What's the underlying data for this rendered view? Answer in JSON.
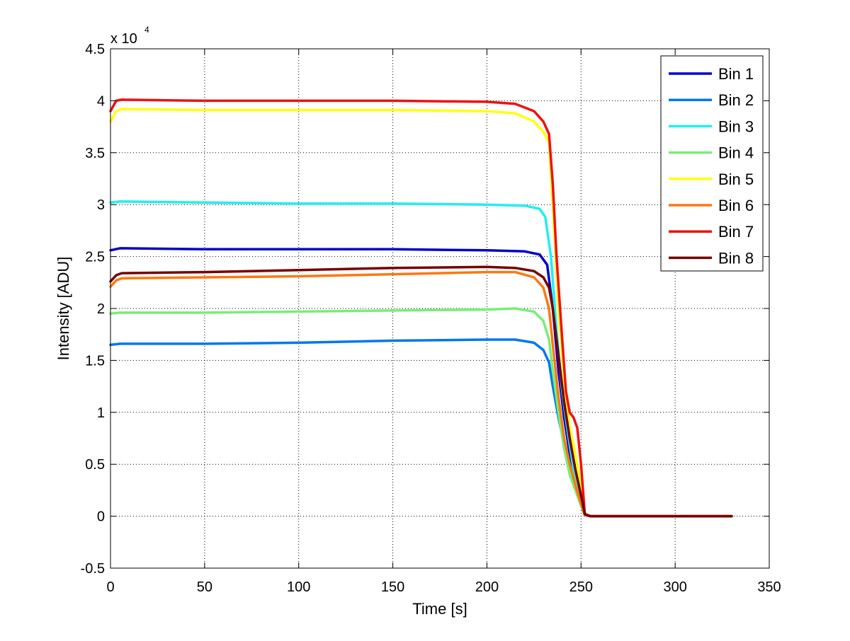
{
  "chart_data": {
    "type": "line",
    "title": "",
    "xlabel": "Time [s]",
    "ylabel": "Intensity [ADU]",
    "y_exponent_label": "x 10",
    "y_exponent_power": "4",
    "xlim": [
      0,
      350
    ],
    "ylim": [
      -0.5,
      4.5
    ],
    "xticks": [
      0,
      50,
      100,
      150,
      200,
      250,
      300,
      350
    ],
    "yticks": [
      -0.5,
      0,
      0.5,
      1,
      1.5,
      2,
      2.5,
      3,
      3.5,
      4,
      4.5
    ],
    "xtick_labels": [
      "0",
      "50",
      "100",
      "150",
      "200",
      "250",
      "300",
      "350"
    ],
    "ytick_labels": [
      "-0.5",
      "0",
      "0.5",
      "1",
      "1.5",
      "2",
      "2.5",
      "3",
      "3.5",
      "4",
      "4.5"
    ],
    "grid": true,
    "legend_position": "top-right",
    "series": [
      {
        "name": "Bin 1",
        "color": "#0000cc",
        "x": [
          0,
          5,
          50,
          100,
          150,
          200,
          220,
          228,
          232,
          235,
          238,
          241,
          244,
          247,
          250,
          252,
          255,
          330
        ],
        "y": [
          2.56,
          2.58,
          2.57,
          2.57,
          2.57,
          2.56,
          2.55,
          2.52,
          2.42,
          2.0,
          1.4,
          0.95,
          0.6,
          0.35,
          0.12,
          0.01,
          0.0,
          0.0
        ]
      },
      {
        "name": "Bin 2",
        "color": "#0077ee",
        "x": [
          0,
          5,
          50,
          100,
          150,
          200,
          215,
          225,
          230,
          233,
          235,
          238,
          241,
          244,
          247,
          250,
          252,
          255,
          330
        ],
        "y": [
          1.65,
          1.66,
          1.66,
          1.67,
          1.69,
          1.7,
          1.7,
          1.67,
          1.6,
          1.48,
          1.25,
          0.95,
          0.7,
          0.5,
          0.3,
          0.1,
          0.01,
          0.0,
          0.0
        ]
      },
      {
        "name": "Bin 3",
        "color": "#22eeee",
        "x": [
          0,
          5,
          50,
          100,
          150,
          200,
          220,
          228,
          231,
          234,
          237,
          240,
          243,
          246,
          249,
          251,
          253,
          256,
          330
        ],
        "y": [
          3.02,
          3.03,
          3.02,
          3.01,
          3.01,
          3.0,
          2.99,
          2.96,
          2.88,
          2.5,
          1.8,
          1.2,
          0.8,
          0.45,
          0.2,
          0.05,
          0.01,
          0.0,
          0.0
        ]
      },
      {
        "name": "Bin 4",
        "color": "#77ee77",
        "x": [
          0,
          5,
          50,
          100,
          150,
          200,
          215,
          225,
          230,
          233,
          235,
          238,
          241,
          244,
          247,
          250,
          252,
          255,
          330
        ],
        "y": [
          1.95,
          1.96,
          1.96,
          1.97,
          1.98,
          1.99,
          2.0,
          1.97,
          1.88,
          1.7,
          1.4,
          1.0,
          0.65,
          0.4,
          0.25,
          0.1,
          0.01,
          0.0,
          0.0
        ]
      },
      {
        "name": "Bin 5",
        "color": "#ffff11",
        "x": [
          0,
          3,
          6,
          50,
          100,
          150,
          200,
          215,
          225,
          230,
          233,
          235,
          238,
          241,
          244,
          247,
          250,
          252,
          255,
          330
        ],
        "y": [
          3.8,
          3.9,
          3.92,
          3.91,
          3.91,
          3.91,
          3.9,
          3.88,
          3.8,
          3.7,
          3.6,
          3.0,
          2.0,
          1.3,
          0.85,
          0.6,
          0.3,
          0.02,
          0.0,
          0.0
        ]
      },
      {
        "name": "Bin 6",
        "color": "#ff7711",
        "x": [
          0,
          3,
          6,
          50,
          100,
          150,
          200,
          215,
          225,
          230,
          233,
          235,
          238,
          241,
          244,
          247,
          250,
          252,
          255,
          330
        ],
        "y": [
          2.21,
          2.27,
          2.29,
          2.3,
          2.31,
          2.33,
          2.35,
          2.35,
          2.3,
          2.2,
          2.0,
          1.65,
          1.15,
          0.75,
          0.5,
          0.3,
          0.12,
          0.01,
          0.0,
          0.0
        ]
      },
      {
        "name": "Bin 7",
        "color": "#ee1111",
        "x": [
          0,
          3,
          6,
          50,
          100,
          150,
          200,
          215,
          225,
          230,
          233,
          235,
          237,
          240,
          242,
          244,
          246,
          248,
          250,
          252,
          255,
          330
        ],
        "y": [
          3.9,
          4.0,
          4.01,
          4.0,
          4.0,
          4.0,
          3.99,
          3.97,
          3.9,
          3.8,
          3.68,
          3.2,
          2.5,
          1.7,
          1.2,
          1.0,
          0.95,
          0.85,
          0.5,
          0.02,
          0.0,
          0.0
        ]
      },
      {
        "name": "Bin 8",
        "color": "#770000",
        "x": [
          0,
          3,
          6,
          50,
          100,
          150,
          200,
          215,
          225,
          230,
          233,
          235,
          238,
          241,
          244,
          247,
          250,
          252,
          255,
          330
        ],
        "y": [
          2.26,
          2.32,
          2.34,
          2.35,
          2.37,
          2.39,
          2.4,
          2.39,
          2.36,
          2.3,
          2.2,
          2.0,
          1.55,
          1.1,
          0.75,
          0.45,
          0.2,
          0.02,
          0.0,
          0.0
        ]
      }
    ]
  }
}
